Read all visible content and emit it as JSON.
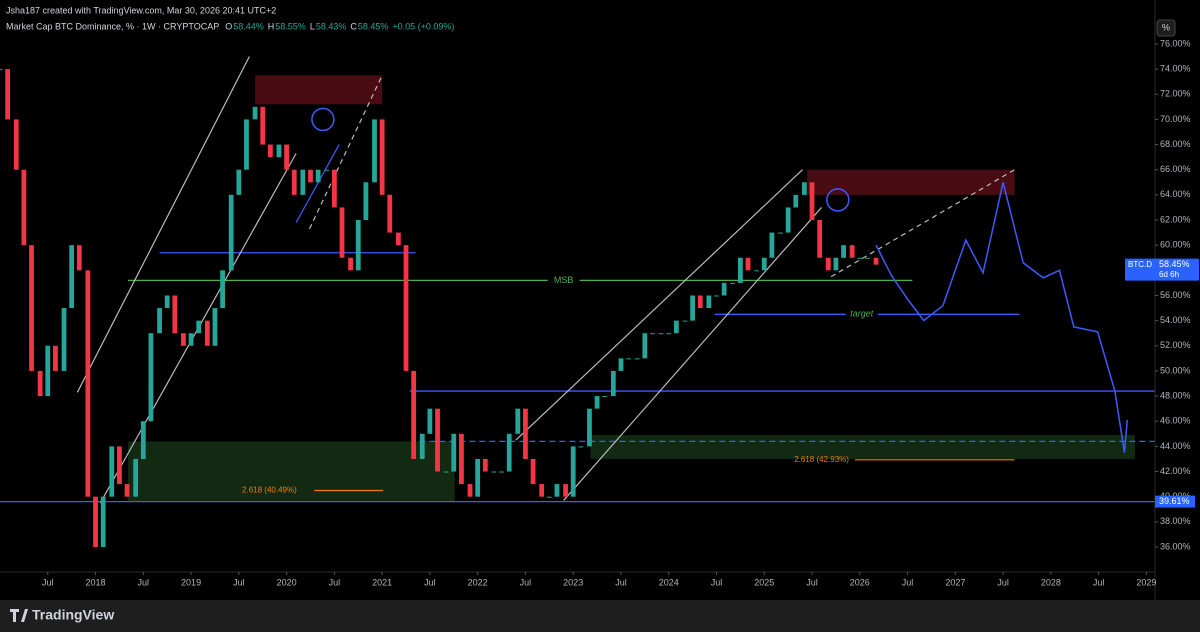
{
  "header": {
    "credit": "Jsha187 created with TradingView.com, Mar 30, 2026 20:41 UTC+2",
    "symbol": "Market Cap BTC Dominance, % · 1W · CRYPTOCAP",
    "ohlc": [
      {
        "key": "O",
        "text": "58.44%"
      },
      {
        "key": "H",
        "text": "58.55%"
      },
      {
        "key": "L",
        "text": "58.43%"
      },
      {
        "key": "C",
        "text": "58.45%"
      }
    ],
    "change": "+0.05 (+0.09%)",
    "scale_button": "%"
  },
  "chart_data": {
    "type": "candlestick",
    "x": [
      2017.0,
      2017.08,
      2017.17,
      2017.25,
      2017.33,
      2017.42,
      2017.5,
      2017.58,
      2017.67,
      2017.75,
      2017.83,
      2017.92,
      2018.0,
      2018.08,
      2018.17,
      2018.25,
      2018.33,
      2018.42,
      2018.5,
      2018.58,
      2018.67,
      2018.75,
      2018.83,
      2018.92,
      2019.0,
      2019.08,
      2019.17,
      2019.25,
      2019.33,
      2019.42,
      2019.5,
      2019.58,
      2019.67,
      2019.75,
      2019.83,
      2019.92,
      2020.0,
      2020.08,
      2020.17,
      2020.25,
      2020.33,
      2020.42,
      2020.5,
      2020.58,
      2020.67,
      2020.75,
      2020.83,
      2020.92,
      2021.0,
      2021.08,
      2021.17,
      2021.25,
      2021.33,
      2021.42,
      2021.5,
      2021.58,
      2021.67,
      2021.75,
      2021.83,
      2021.92,
      2022.0,
      2022.08,
      2022.17,
      2022.25,
      2022.33,
      2022.42,
      2022.5,
      2022.58,
      2022.67,
      2022.75,
      2022.83,
      2022.92,
      2023.0,
      2023.08,
      2023.17,
      2023.25,
      2023.33,
      2023.42,
      2023.5,
      2023.58,
      2023.67,
      2023.75,
      2023.83,
      2023.92,
      2024.0,
      2024.08,
      2024.17,
      2024.25,
      2024.33,
      2024.42,
      2024.5,
      2024.58,
      2024.67,
      2024.75,
      2024.83,
      2024.92,
      2025.0,
      2025.08,
      2025.17,
      2025.25,
      2025.33,
      2025.42,
      2025.5,
      2025.58,
      2025.67,
      2025.75,
      2025.83,
      2025.92,
      2026.0,
      2026.08,
      2026.17
    ],
    "values": [
      74,
      70,
      66,
      60,
      50,
      48,
      52,
      50,
      55,
      60,
      58,
      40,
      36,
      40,
      44,
      41,
      40,
      43,
      46,
      53,
      55,
      56,
      53,
      52,
      53,
      54,
      52,
      55,
      58,
      64,
      66,
      70,
      71,
      68,
      67,
      68,
      66,
      64,
      66,
      65,
      66,
      66,
      63,
      59,
      58,
      62,
      65,
      70,
      64,
      61,
      60,
      50,
      43,
      45,
      47,
      42,
      42,
      45,
      41,
      40,
      43,
      42,
      42,
      42,
      45,
      47,
      43,
      41,
      40,
      40,
      41,
      40,
      44,
      44,
      47,
      48,
      48,
      50,
      51,
      51,
      51,
      53,
      53,
      53,
      53,
      54,
      54,
      56,
      55,
      56,
      56,
      57,
      57,
      59,
      58,
      58,
      59,
      61,
      61,
      63,
      64,
      65,
      62,
      59,
      58,
      59,
      60,
      59,
      59,
      59,
      58.45
    ],
    "up_color": "#26a69a",
    "down_color": "#f23645",
    "xlim": [
      2017.0,
      2029.09
    ],
    "ylim": [
      34.17,
      77.11
    ],
    "xticks": [
      {
        "value": 2017.5,
        "label": "Jul"
      },
      2018,
      {
        "value": 2018.5,
        "label": "Jul"
      },
      2019,
      {
        "value": 2019.5,
        "label": "Jul"
      },
      2020,
      {
        "value": 2020.5,
        "label": "Jul"
      },
      2021,
      {
        "value": 2021.5,
        "label": "Jul"
      },
      2022,
      {
        "value": 2022.5,
        "label": "Jul"
      },
      2023,
      {
        "value": 2023.5,
        "label": "Jul"
      },
      2024,
      {
        "value": 2024.5,
        "label": "Jul"
      },
      2025,
      {
        "value": 2025.5,
        "label": "Jul"
      },
      2026,
      {
        "value": 2026.5,
        "label": "Jul"
      },
      2027,
      {
        "value": 2027.5,
        "label": "Jul"
      },
      2028,
      {
        "value": 2028.5,
        "label": "Jul"
      },
      2029
    ],
    "yticks": [
      {
        "value": 36,
        "label": "36.00%"
      },
      {
        "value": 38,
        "label": "38.00%"
      },
      {
        "value": 40,
        "label": "40.00%"
      },
      {
        "value": 42,
        "label": "42.00%"
      },
      {
        "value": 44,
        "label": "44.00%"
      },
      {
        "value": 46,
        "label": "46.00%"
      },
      {
        "value": 48,
        "label": "48.00%"
      },
      {
        "value": 50,
        "label": "50.00%"
      },
      {
        "value": 52,
        "label": "52.00%"
      },
      {
        "value": 54,
        "label": "54.00%"
      },
      {
        "value": 56,
        "label": "56.00%"
      },
      {
        "value": 58,
        "label": "58.00%"
      },
      {
        "value": 60,
        "label": "60.00%"
      },
      {
        "value": 62,
        "label": "62.00%"
      },
      {
        "value": 64,
        "label": "64.00%"
      },
      {
        "value": 66,
        "label": "66.00%"
      },
      {
        "value": 68,
        "label": "68.00%"
      },
      {
        "value": 70,
        "label": "70.00%"
      },
      {
        "value": 72,
        "label": "72.00%"
      },
      {
        "value": 74,
        "label": "74.00%"
      },
      {
        "value": 76,
        "label": "76.00%"
      }
    ],
    "projection": {
      "x": [
        2026.17,
        2026.33,
        2026.51,
        2026.67,
        2026.87,
        2027.11,
        2027.29,
        2027.5,
        2027.71,
        2027.92,
        2028.09,
        2028.24,
        2028.49,
        2028.67,
        2028.77,
        2028.8
      ],
      "values": [
        60.0,
        57.6,
        55.6,
        54.0,
        55.2,
        60.4,
        57.8,
        65.0,
        58.6,
        57.4,
        58.0,
        53.5,
        53.1,
        48.4,
        43.5,
        46.1
      ],
      "color": "#3d5afe"
    },
    "zones": [
      {
        "x": [
          2019.67,
          2021.0
        ],
        "y": [
          71.2,
          73.5
        ],
        "color": "rgba(120,20,30,0.6)"
      },
      {
        "x": [
          2025.45,
          2027.62
        ],
        "y": [
          64.0,
          66.0
        ],
        "color": "rgba(120,20,30,0.6)"
      },
      {
        "x": [
          2018.34,
          2021.76
        ],
        "y": [
          39.6,
          44.4
        ],
        "color": "rgba(40,90,40,0.45)"
      },
      {
        "x": [
          2023.18,
          2028.88
        ],
        "y": [
          43.0,
          44.9
        ],
        "color": "rgba(40,90,40,0.45)"
      }
    ],
    "levels": [
      {
        "value": 59.4,
        "x": [
          2018.67,
          2021.35
        ],
        "color": "#3d5afe",
        "dashed": false
      },
      {
        "value": 57.2,
        "x": [
          2018.34,
          2026.55
        ],
        "color": "#4caf50",
        "dashed": false
      },
      {
        "value": 54.5,
        "x": [
          2024.48,
          2027.67
        ],
        "color": "#3d5afe",
        "dashed": false
      },
      {
        "value": 48.4,
        "x": [
          2021.29,
          2029.09
        ],
        "color": "#3d5afe",
        "dashed": false
      },
      {
        "value": 44.4,
        "x": [
          2021.39,
          2029.09
        ],
        "color": "#3d5afe",
        "dashed": true
      },
      {
        "value": 39.61,
        "x": [
          2017.0,
          2029.09
        ],
        "color": "#3d5afe",
        "dashed": false
      }
    ],
    "trendlines": [
      {
        "points": [
          [
            2017.81,
            48.3
          ],
          [
            2019.61,
            75.0
          ]
        ],
        "color": "#bbbbbb",
        "dashed": false
      },
      {
        "points": [
          [
            2018.05,
            39.5
          ],
          [
            2020.1,
            67.3
          ]
        ],
        "color": "#bbbbbb",
        "dashed": false
      },
      {
        "points": [
          [
            2020.24,
            61.3
          ],
          [
            2021.0,
            73.5
          ]
        ],
        "color": "#bbbbbb",
        "dashed": true
      },
      {
        "points": [
          [
            2022.4,
            44.5
          ],
          [
            2025.4,
            66.0
          ]
        ],
        "color": "#bbbbbb",
        "dashed": false
      },
      {
        "points": [
          [
            2022.9,
            39.7
          ],
          [
            2025.6,
            63.0
          ]
        ],
        "color": "#bbbbbb",
        "dashed": false
      },
      {
        "points": [
          [
            2025.7,
            57.5
          ],
          [
            2027.62,
            66.0
          ]
        ],
        "color": "#bbbbbb",
        "dashed": true
      },
      {
        "points": [
          [
            2020.1,
            61.8
          ],
          [
            2020.55,
            68.0
          ]
        ],
        "color": "#3d5afe",
        "dashed": false
      }
    ],
    "circles": [
      [
        2020.38,
        70.0
      ],
      [
        2025.77,
        63.6
      ]
    ],
    "annotations": [
      {
        "text": "MSB",
        "x": 2022.9,
        "y": 57.2,
        "color": "#4caf50"
      },
      {
        "text": "target",
        "x": 2026.02,
        "y": 54.5,
        "color": "#4caf50"
      }
    ],
    "fibs": [
      {
        "text": "2.618 (40.49%)",
        "value": 40.49,
        "label_x": 2019.82,
        "x": [
          2020.29,
          2021.01
        ],
        "color": "#f57c00"
      },
      {
        "text": "2.618 (42.93%)",
        "value": 42.93,
        "label_x": 2025.6,
        "x": [
          2025.95,
          2027.62
        ],
        "color": "#f57c00"
      }
    ],
    "last_price": {
      "symbol": "BTC.D",
      "value": 58.45,
      "value_label": "58.45%",
      "countdown": "6d 6h"
    },
    "support_label": {
      "value": 39.61,
      "label": "39.61%"
    }
  },
  "footer": {
    "brand": "TradingView"
  }
}
